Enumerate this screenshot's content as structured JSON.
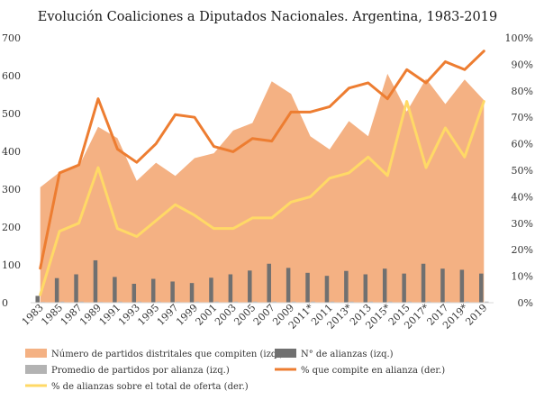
{
  "chart_data": {
    "type": "combo",
    "title": "Evolución Coaliciones a Diputados Nacionales. Argentina, 1983-2019",
    "xlabel": "",
    "ylabel_left": "",
    "ylabel_right": "",
    "categories": [
      "1983",
      "1985",
      "1987",
      "1989",
      "1991",
      "1993",
      "1995",
      "1997",
      "1999",
      "2001",
      "2003",
      "2005",
      "2007",
      "2009",
      "2011*",
      "2011",
      "2013*",
      "2013",
      "2015*",
      "2015",
      "2017*",
      "2017",
      "2019*",
      "2019"
    ],
    "y_left": {
      "lim": [
        0,
        700
      ],
      "ticks": [
        "0",
        "100",
        "200",
        "300",
        "400",
        "500",
        "600",
        "700"
      ]
    },
    "y_right": {
      "lim": [
        0,
        100
      ],
      "ticks": [
        "0%",
        "10%",
        "20%",
        "30%",
        "40%",
        "50%",
        "60%",
        "70%",
        "80%",
        "90%",
        "100%"
      ]
    },
    "grid": false,
    "legend_position": "bottom",
    "series": [
      {
        "name": "Número de partidos distritales que compiten (izq.)",
        "kind": "area",
        "axis": "left",
        "color": "#f4b183",
        "values": [
          305,
          345,
          360,
          465,
          435,
          322,
          370,
          335,
          382,
          395,
          455,
          475,
          585,
          552,
          440,
          405,
          480,
          440,
          605,
          505,
          592,
          525,
          590,
          535
        ]
      },
      {
        "name": "N° de alianzas (izq.)",
        "kind": "bar",
        "axis": "left",
        "color": "#707070",
        "values": [
          18,
          65,
          75,
          112,
          68,
          50,
          63,
          56,
          52,
          66,
          75,
          85,
          103,
          92,
          79,
          71,
          84,
          75,
          90,
          77,
          103,
          90,
          87,
          77
        ]
      },
      {
        "name": "Promedio de partidos por alianza (izq.)",
        "kind": "bar",
        "axis": "left",
        "color": "#b3b3b3",
        "values": [
          2,
          3,
          3,
          2,
          3,
          3,
          3,
          3,
          3,
          3,
          3,
          3,
          3,
          3,
          3,
          3,
          3,
          3,
          3,
          3,
          3,
          3,
          3,
          3
        ]
      },
      {
        "name": "% que compite en alianza (der.)",
        "kind": "line",
        "axis": "right",
        "color": "#ed7d31",
        "values": [
          13,
          49,
          52,
          77,
          58,
          53,
          60,
          71,
          70,
          59,
          57,
          62,
          61,
          72,
          72,
          74,
          81,
          83,
          77,
          88,
          83,
          91,
          88,
          95
        ]
      },
      {
        "name": "% de alianzas sobre el total de oferta (der.)",
        "kind": "line",
        "axis": "right",
        "color": "#ffd966",
        "values": [
          3,
          27,
          30,
          51,
          28,
          25,
          31,
          37,
          33,
          28,
          28,
          32,
          32,
          38,
          40,
          47,
          49,
          55,
          48,
          76,
          51,
          66,
          55,
          76
        ]
      }
    ]
  }
}
